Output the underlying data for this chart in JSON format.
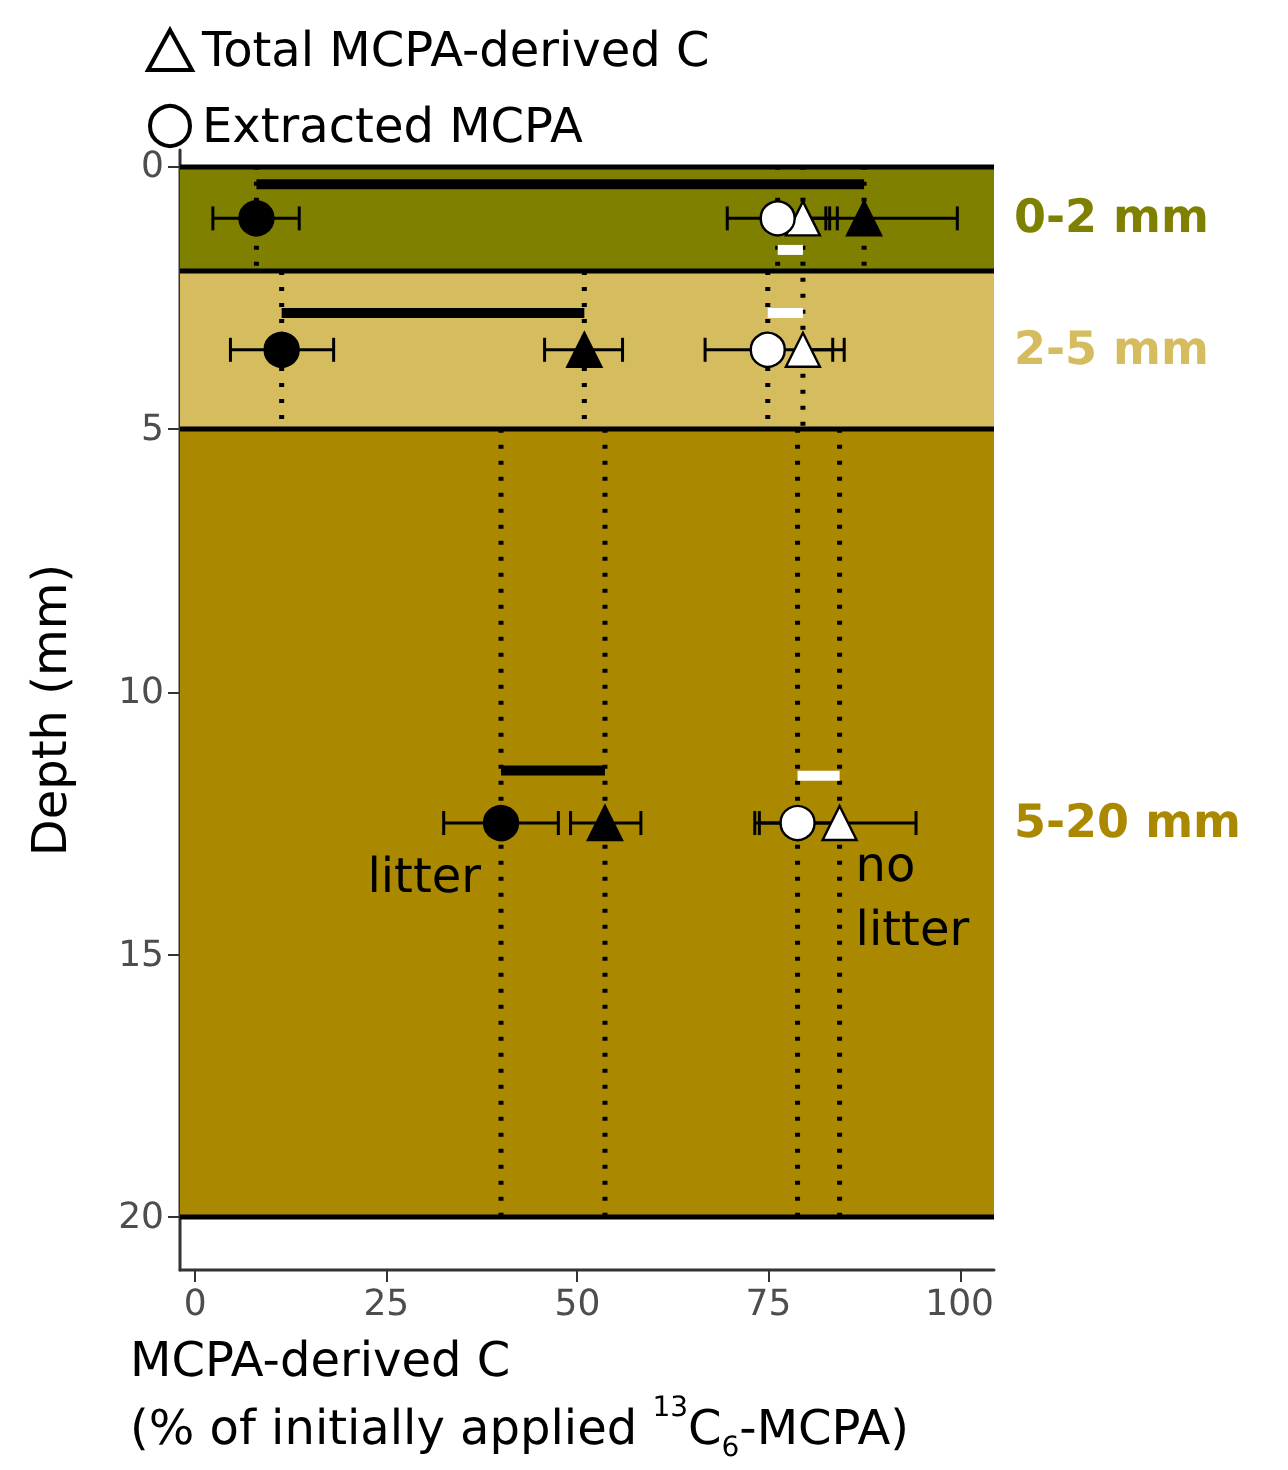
{
  "chart_data": {
    "type": "scatter",
    "xlabel": "MCPA-derived C\n(% of initially applied $^{13}$C$_{6}$-MCPA)",
    "ylabel": "Depth (mm)",
    "xlim": [
      -2,
      104.5
    ],
    "xticks": [
      0,
      25,
      50,
      75,
      100
    ],
    "ylim": [
      21,
      -0.3
    ],
    "yticks": [
      0,
      5,
      10,
      15,
      20
    ],
    "grid": false,
    "legend": "top left",
    "bands": [
      {
        "axis": "y",
        "from": 0,
        "to": 2,
        "label": "0-2 mm",
        "color": "#808000"
      },
      {
        "axis": "y",
        "from": 2,
        "to": 5,
        "label": "2-5 mm",
        "color": "#d4bc5f"
      },
      {
        "axis": "y",
        "from": 5,
        "to": 20,
        "label": "5-20 mm",
        "color": "#aa8800"
      }
    ],
    "ref_lines": [
      {
        "axis": "y",
        "value": 0,
        "color": "#000000"
      },
      {
        "axis": "y",
        "value": 2,
        "color": "#000000"
      },
      {
        "axis": "y",
        "value": 5,
        "color": "#000000"
      },
      {
        "axis": "y",
        "value": 20,
        "color": "#000000"
      }
    ],
    "series": [
      {
        "name": "Total MCPA-derived C",
        "x": [
          79.5,
          79.5,
          84.3
        ],
        "values": [
          1,
          3.5,
          12.5
        ],
        "xerrors": [
          [
            79.5,
            84
          ],
          [
            79.5,
            84.9
          ],
          [
            73.2,
            94.3
          ]
        ],
        "color": "#ffffff",
        "marker": "triangle"
      },
      {
        "name": "Extracted MCPA",
        "x": [
          76.2,
          74.9,
          78.8
        ],
        "values": [
          1,
          3.5,
          12.5
        ],
        "xerrors": [
          [
            69.6,
            83
          ],
          [
            66.7,
            83.4
          ],
          [
            73.8,
            84
          ]
        ],
        "color": "#ffffff",
        "marker": "circle"
      },
      {
        "x": [
          8,
          11.3,
          40
        ],
        "values": [
          1,
          3.5,
          12.5
        ],
        "xerrors": [
          [
            2.3,
            13.6
          ],
          [
            4.6,
            18.1
          ],
          [
            32.5,
            47.5
          ]
        ],
        "color": "#000000",
        "marker": "circle"
      },
      {
        "x": [
          87.5,
          50.9,
          53.6
        ],
        "values": [
          1,
          3.5,
          12.5
        ],
        "xerrors": [
          [
            82.5,
            99.7
          ],
          [
            45.7,
            55.9
          ],
          [
            49.1,
            58.3
          ]
        ],
        "color": "#000000",
        "marker": "triangle"
      },
      {
        "type": "line",
        "x": [
          8,
          87.5
        ],
        "values": [
          0.35,
          0.35
        ],
        "color": "#000000"
      },
      {
        "type": "line",
        "x": [
          11.3,
          50.9
        ],
        "values": [
          2.8,
          2.8
        ],
        "color": "#000000"
      },
      {
        "type": "line",
        "x": [
          40,
          53.6
        ],
        "values": [
          11.5,
          11.5
        ],
        "color": "#000000"
      },
      {
        "type": "line",
        "x": [
          76.2,
          79.5
        ],
        "values": [
          1.6,
          1.6
        ],
        "color": "#ffffff"
      },
      {
        "type": "line",
        "x": [
          74.9,
          79.5
        ],
        "values": [
          2.8,
          2.8
        ],
        "color": "#ffffff"
      },
      {
        "type": "line",
        "x": [
          78.8,
          84.3
        ],
        "values": [
          11.6,
          11.6
        ],
        "color": "#ffffff"
      },
      {
        "type": "line",
        "x": [
          8,
          8
        ],
        "values": [
          0,
          2
        ],
        "color": "#000000",
        "line_style": "dotted"
      },
      {
        "type": "line",
        "x": [
          76.2,
          76.2
        ],
        "values": [
          0,
          2
        ],
        "color": "#000000",
        "line_style": "dotted"
      },
      {
        "type": "line",
        "x": [
          79.5,
          79.5
        ],
        "values": [
          0,
          5
        ],
        "color": "#000000",
        "line_style": "dotted"
      },
      {
        "type": "line",
        "x": [
          87.5,
          87.5
        ],
        "values": [
          0,
          2
        ],
        "color": "#000000",
        "line_style": "dotted"
      },
      {
        "type": "line",
        "x": [
          11.3,
          11.3
        ],
        "values": [
          2,
          5
        ],
        "color": "#000000",
        "line_style": "dotted"
      },
      {
        "type": "line",
        "x": [
          50.9,
          50.9
        ],
        "values": [
          2,
          5
        ],
        "color": "#000000",
        "line_style": "dotted"
      },
      {
        "type": "line",
        "x": [
          74.9,
          74.9
        ],
        "values": [
          2,
          5
        ],
        "color": "#000000",
        "line_style": "dotted"
      },
      {
        "type": "line",
        "x": [
          40,
          40
        ],
        "values": [
          5,
          20
        ],
        "color": "#000000",
        "line_style": "dotted"
      },
      {
        "type": "line",
        "x": [
          53.6,
          53.6
        ],
        "values": [
          5,
          20
        ],
        "color": "#000000",
        "line_style": "dotted"
      },
      {
        "type": "line",
        "x": [
          78.8,
          78.8
        ],
        "values": [
          5,
          20
        ],
        "color": "#000000",
        "line_style": "dotted"
      },
      {
        "type": "line",
        "x": [
          84.3,
          84.3
        ],
        "values": [
          5,
          20
        ],
        "color": "#000000",
        "line_style": "dotted"
      }
    ],
    "annotations": [
      {
        "text": "litter",
        "x": 40,
        "y": 13.5
      },
      {
        "text": "no litter",
        "x": 84.3,
        "y": 13.9
      }
    ]
  }
}
